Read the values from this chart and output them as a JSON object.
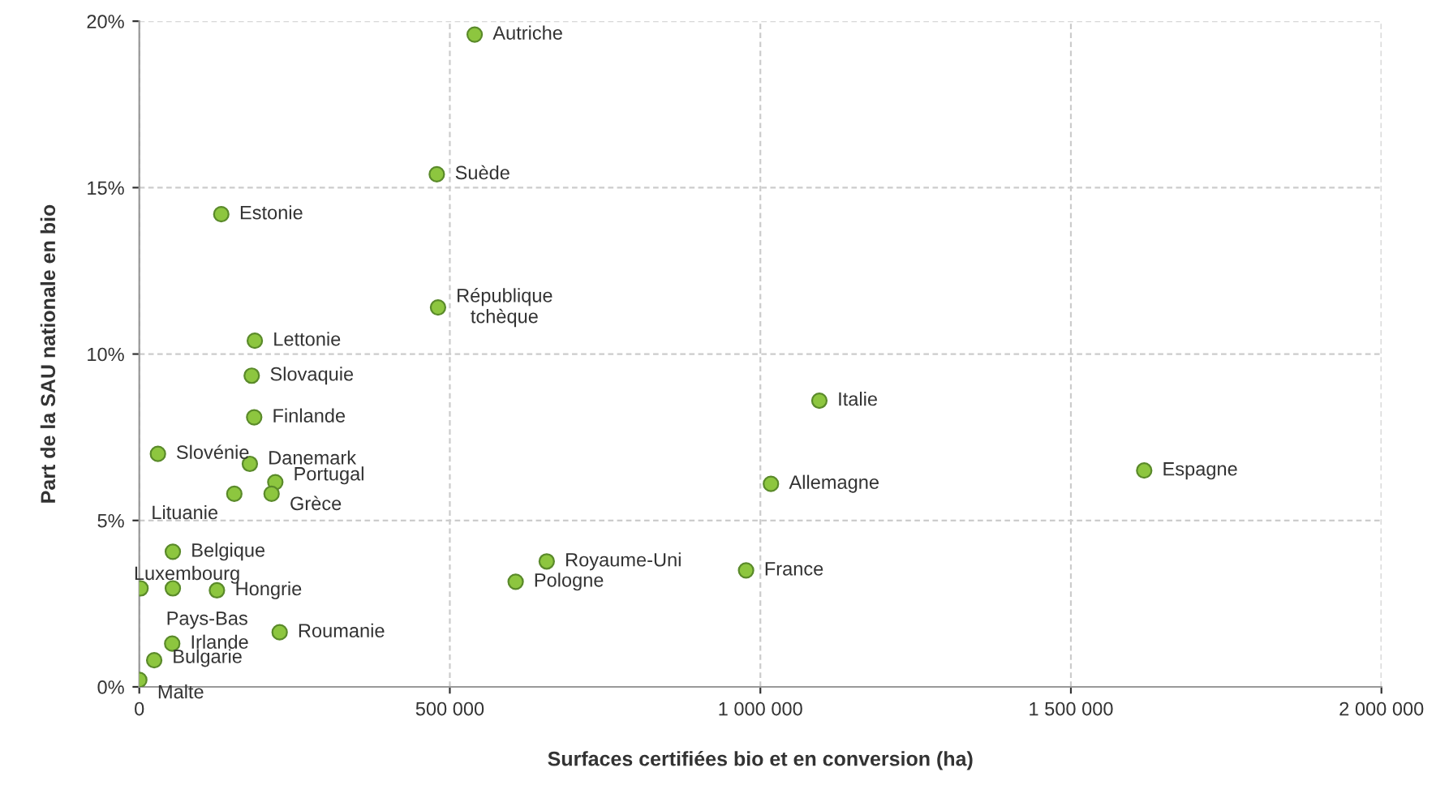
{
  "chart_data": {
    "type": "scatter",
    "xlabel": "Surfaces certifiées bio et en conversion (ha)",
    "ylabel": "Part de la SAU nationale en bio",
    "x": [
      540000,
      479000,
      132000,
      481000,
      186000,
      181000,
      185000,
      30000,
      178000,
      219000,
      213000,
      153000,
      54000,
      2000,
      54000,
      125000,
      226000,
      53000,
      24000,
      0,
      656000,
      606000,
      1095000,
      1017000,
      1618000,
      977000
    ],
    "series": [
      {
        "color": "#8dc63f",
        "values": [
          19.6,
          15.4,
          14.2,
          11.4,
          10.4,
          9.35,
          8.1,
          7.0,
          6.7,
          6.15,
          5.8,
          5.8,
          4.06,
          2.96,
          2.96,
          2.9,
          1.64,
          1.3,
          0.8,
          0.21,
          3.77,
          3.16,
          8.6,
          6.1,
          6.5,
          3.5
        ]
      }
    ],
    "annotations": [
      {
        "text": "Autriche",
        "x": 540000,
        "y": 19.6
      },
      {
        "text": "Suède",
        "x": 479000,
        "y": 15.4
      },
      {
        "text": "Estonie",
        "x": 132000,
        "y": 14.2
      },
      {
        "text": "République\ntchèque",
        "x": 481000,
        "y": 11.4
      },
      {
        "text": "Lettonie",
        "x": 186000,
        "y": 10.4
      },
      {
        "text": "Slovaquie",
        "x": 181000,
        "y": 9.35
      },
      {
        "text": "Finlande",
        "x": 185000,
        "y": 8.1
      },
      {
        "text": "Slovénie",
        "x": 30000,
        "y": 7.0
      },
      {
        "text": "Danemark",
        "x": 178000,
        "y": 6.7
      },
      {
        "text": "Portugal",
        "x": 219000,
        "y": 6.15
      },
      {
        "text": "Grèce",
        "x": 213000,
        "y": 5.8
      },
      {
        "text": "Lituanie",
        "x": 153000,
        "y": 5.8
      },
      {
        "text": "Belgique",
        "x": 54000,
        "y": 4.06
      },
      {
        "text": "Luxembourg",
        "x": 2000,
        "y": 2.96
      },
      {
        "text": "Pays-Bas",
        "x": 54000,
        "y": 2.96
      },
      {
        "text": "Hongrie",
        "x": 125000,
        "y": 2.9
      },
      {
        "text": "Roumanie",
        "x": 226000,
        "y": 1.64
      },
      {
        "text": "Irlande",
        "x": 53000,
        "y": 1.3
      },
      {
        "text": "Bulgarie",
        "x": 24000,
        "y": 0.8
      },
      {
        "text": "Malte",
        "x": 0,
        "y": 0.21
      },
      {
        "text": "Royaume-Uni",
        "x": 656000,
        "y": 3.77
      },
      {
        "text": "Pologne",
        "x": 606000,
        "y": 3.16
      },
      {
        "text": "Italie",
        "x": 1095000,
        "y": 8.6
      },
      {
        "text": "Allemagne",
        "x": 1017000,
        "y": 6.1
      },
      {
        "text": "Espagne",
        "x": 1618000,
        "y": 6.5
      },
      {
        "text": "France",
        "x": 977000,
        "y": 3.5
      }
    ],
    "xlim": [
      0,
      2000000
    ],
    "ylim": [
      0,
      20
    ],
    "xticks": [
      {
        "value": 0,
        "label": "0"
      },
      {
        "value": 500000,
        "label": "500 000"
      },
      {
        "value": 1000000,
        "label": "1 000 000"
      },
      {
        "value": 1500000,
        "label": "1 500 000"
      },
      {
        "value": 2000000,
        "label": "2 000 000"
      }
    ],
    "yticks": [
      {
        "value": 0,
        "label": "0%"
      },
      {
        "value": 5,
        "label": "5%"
      },
      {
        "value": 10,
        "label": "10%"
      },
      {
        "value": 15,
        "label": "15%"
      },
      {
        "value": 20,
        "label": "20%"
      }
    ],
    "grid": true,
    "marker": "circle",
    "legend": false
  }
}
